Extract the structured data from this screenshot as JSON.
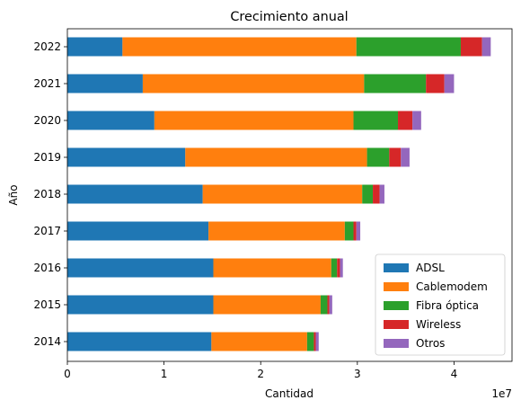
{
  "chart_data": {
    "type": "bar",
    "orientation": "horizontal",
    "stacked": true,
    "title": "Crecimiento anual",
    "xlabel": "Cantidad",
    "ylabel": "Año",
    "x_offset_label": "1e7",
    "x_scale_factor": 10000000,
    "xlim": [
      0,
      46000000
    ],
    "x_ticks": [
      0,
      10000000,
      20000000,
      30000000,
      40000000
    ],
    "x_tick_labels": [
      "0",
      "1",
      "2",
      "3",
      "4"
    ],
    "categories": [
      "2014",
      "2015",
      "2016",
      "2017",
      "2018",
      "2019",
      "2020",
      "2021",
      "2022"
    ],
    "legend_position": "lower-right",
    "grid": false,
    "series": [
      {
        "name": "ADSL",
        "color": "#1f77b4",
        "values": [
          14900000,
          15100000,
          15100000,
          14600000,
          14000000,
          12200000,
          9000000,
          7800000,
          5700000
        ]
      },
      {
        "name": "Cablemodem",
        "color": "#ff7f0e",
        "values": [
          9900000,
          11100000,
          12200000,
          14100000,
          16500000,
          18800000,
          20600000,
          22900000,
          24200000
        ]
      },
      {
        "name": "Fibra óptica",
        "color": "#2ca02c",
        "values": [
          700000,
          700000,
          600000,
          900000,
          1100000,
          2300000,
          4600000,
          6400000,
          10800000
        ]
      },
      {
        "name": "Wireless",
        "color": "#d62728",
        "values": [
          200000,
          200000,
          300000,
          300000,
          700000,
          1200000,
          1500000,
          1900000,
          2200000
        ]
      },
      {
        "name": "Otros",
        "color": "#9467bd",
        "values": [
          300000,
          300000,
          300000,
          400000,
          500000,
          900000,
          900000,
          1000000,
          900000
        ]
      }
    ]
  }
}
